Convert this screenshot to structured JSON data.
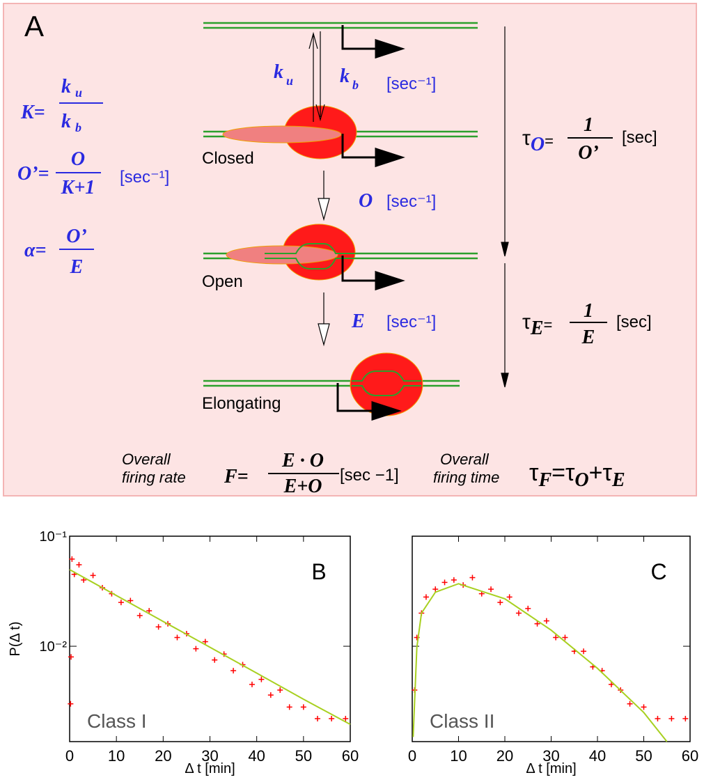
{
  "panel_a": {
    "label": "A",
    "eq_k": {
      "lhs": "K=",
      "num": {
        "symbol": "k",
        "sub": "u"
      },
      "den": {
        "symbol": "k",
        "sub": "b"
      }
    },
    "eq_o": {
      "lhs": "O’=",
      "num": "O",
      "den": "K+1",
      "unit": "[sec⁻¹]"
    },
    "eq_alpha": {
      "lhs": "α=",
      "num": "O’",
      "den": "E"
    },
    "rate_ku": {
      "symbol": "k",
      "sub": "u"
    },
    "rate_kb": {
      "symbol": "k",
      "sub": "b"
    },
    "rate_k_unit": "[sec⁻¹]",
    "rate_o": {
      "symbol": "O",
      "unit": "[sec⁻¹]"
    },
    "rate_e": {
      "symbol": "E",
      "unit": "[sec⁻¹]"
    },
    "states": [
      "Closed",
      "Open",
      "Elongating"
    ],
    "tau_o": {
      "symbol": "τ",
      "sub": "O",
      "eq": "=",
      "num": "1",
      "den": "O’",
      "unit": "[sec]"
    },
    "tau_e": {
      "symbol": "τ",
      "sub": "E",
      "eq": "=",
      "num": "1",
      "den": "E",
      "unit": "[sec]"
    },
    "firing_rate": {
      "caption": [
        "Overall",
        "firing rate"
      ],
      "lhs": "F=",
      "num": "E · O",
      "den": "E+O",
      "unit": "[sec −1]"
    },
    "firing_time": {
      "caption": [
        "Overall",
        "firing time"
      ],
      "parts": [
        "τ",
        "F",
        "=τ",
        "O",
        "+τ",
        "E"
      ]
    }
  },
  "chart_data": [
    {
      "type": "scatter",
      "annotation": "B",
      "label": "Class I",
      "xlabel": "Δ t [min]",
      "ylabel": "P(Δ t)",
      "xlim": [
        0,
        60
      ],
      "xticks": [
        0,
        10,
        20,
        30,
        40,
        50,
        60
      ],
      "ylim": [
        0.00136,
        0.1
      ],
      "log_y": true,
      "yticks": [
        {
          "value": 0.1,
          "label": "10⁻¹"
        },
        {
          "value": 0.01,
          "label": "10⁻²"
        }
      ],
      "series": [
        {
          "mark": "plus",
          "color": "#ff0000",
          "x": [
            0.2,
            0.3,
            0.5,
            1,
            2,
            3,
            5,
            7,
            9,
            11,
            13,
            15,
            17,
            19,
            21,
            23,
            25,
            27,
            29,
            31,
            33,
            35,
            37,
            39,
            41,
            43,
            45,
            47,
            50,
            53,
            56,
            59
          ],
          "values": [
            0.003,
            0.008,
            0.062,
            0.045,
            0.055,
            0.04,
            0.044,
            0.034,
            0.03,
            0.025,
            0.026,
            0.019,
            0.021,
            0.015,
            0.016,
            0.012,
            0.013,
            0.0095,
            0.011,
            0.0075,
            0.0085,
            0.006,
            0.0068,
            0.0045,
            0.005,
            0.0036,
            0.004,
            0.0028,
            0.0028,
            0.0022,
            0.0022,
            0.0022
          ]
        },
        {
          "mark": "line",
          "color": "#a8d020",
          "x": [
            0,
            10,
            20,
            30,
            40,
            50,
            60
          ],
          "values": [
            0.0497,
            0.0289,
            0.0168,
            0.0098,
            0.0057,
            0.0033,
            0.00195
          ]
        }
      ]
    },
    {
      "type": "scatter",
      "annotation": "C",
      "label": "Class II",
      "xlabel": "Δ t [min]",
      "xlim": [
        0,
        60
      ],
      "xticks": [
        0,
        10,
        20,
        30,
        40,
        50,
        60
      ],
      "ylim": [
        0.00136,
        0.1
      ],
      "log_y": true,
      "yticks": [
        0.1,
        0.01
      ],
      "series": [
        {
          "mark": "plus",
          "color": "#ff0000",
          "x": [
            0.5,
            1,
            2,
            3,
            5,
            7,
            9,
            11,
            13,
            15,
            17,
            19,
            21,
            23,
            25,
            27,
            29,
            31,
            33,
            35,
            37,
            39,
            41,
            43,
            45,
            47,
            50,
            53,
            56,
            59
          ],
          "values": [
            0.004,
            0.012,
            0.02,
            0.028,
            0.033,
            0.038,
            0.04,
            0.036,
            0.042,
            0.03,
            0.033,
            0.025,
            0.028,
            0.02,
            0.022,
            0.016,
            0.017,
            0.012,
            0.012,
            0.009,
            0.009,
            0.0065,
            0.006,
            0.0045,
            0.004,
            0.003,
            0.0028,
            0.0022,
            0.0022,
            0.0022
          ]
        },
        {
          "mark": "line",
          "color": "#a8d020",
          "x": [
            0.2,
            1,
            2,
            5,
            10,
            20,
            30,
            40,
            50,
            55
          ],
          "values": [
            0.0015,
            0.0098,
            0.02,
            0.031,
            0.037,
            0.027,
            0.014,
            0.0063,
            0.0025,
            0.00136
          ]
        }
      ]
    }
  ]
}
